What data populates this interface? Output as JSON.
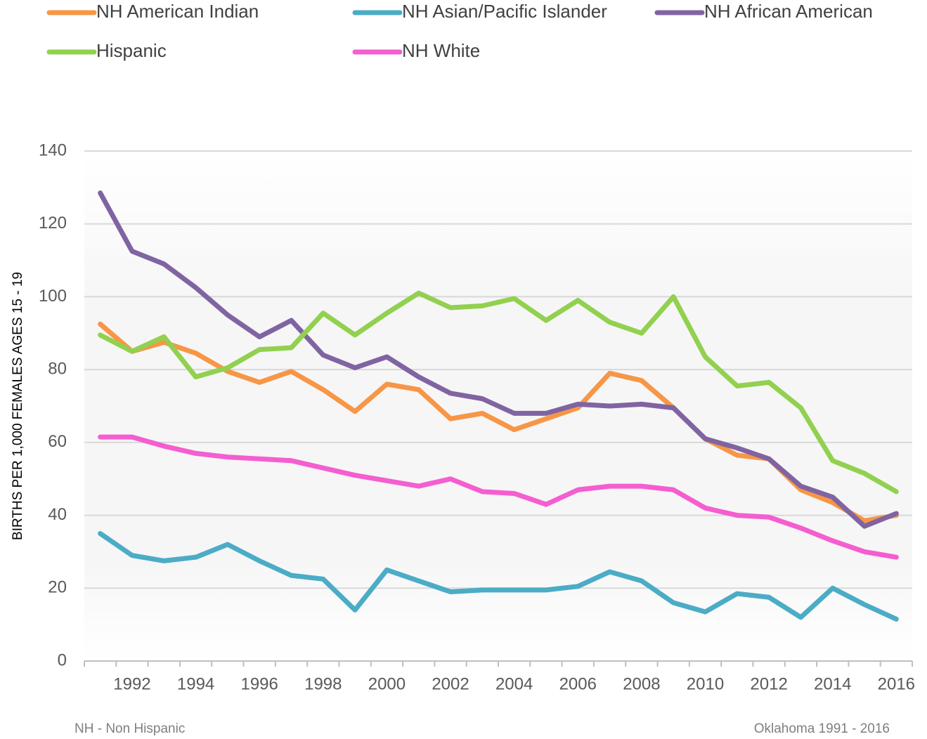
{
  "chart_data": {
    "type": "line",
    "y_label": "BIRTHS PER 1,000 FEMALES AGES 15 - 19",
    "footnote_left": "NH - Non Hispanic",
    "footnote_right": "Oklahoma 1991 - 2016",
    "categories": [
      null,
      "1992",
      null,
      "1994",
      null,
      "1996",
      null,
      "1998",
      null,
      "2000",
      null,
      "2002",
      null,
      "2004",
      null,
      "2006",
      null,
      "2008",
      null,
      "2010",
      null,
      "2012",
      null,
      "2014",
      null,
      "2016"
    ],
    "ylim": [
      0,
      140
    ],
    "yticks": [
      0,
      20,
      40,
      60,
      80,
      100,
      120,
      140
    ],
    "grid": true,
    "legend": "top",
    "series": [
      {
        "name": "NH American Indian",
        "color": "#f79646",
        "values": [
          92.5,
          85,
          87.5,
          84.5,
          79.5,
          76.5,
          79.5,
          74.5,
          68.5,
          76,
          74.5,
          66.5,
          68,
          63.5,
          66.5,
          69.5,
          79,
          77,
          69.5,
          61,
          56.5,
          55.5,
          47,
          43.5,
          38.5,
          40
        ]
      },
      {
        "name": "NH Asian/Pacific Islander",
        "color": "#4bacc6",
        "values": [
          35,
          29,
          27.5,
          28.5,
          32,
          27.5,
          23.5,
          22.5,
          14,
          25,
          22,
          19,
          19.5,
          19.5,
          19.5,
          20.5,
          24.5,
          22,
          16,
          13.5,
          18.5,
          17.5,
          12,
          20,
          15.5,
          11.5
        ]
      },
      {
        "name": "NH African American",
        "color": "#8064a2",
        "values": [
          128.5,
          112.5,
          109,
          102.5,
          95,
          89,
          93.5,
          84,
          80.5,
          83.5,
          78,
          73.5,
          72,
          68,
          68,
          70.5,
          70,
          70.5,
          69.5,
          61,
          58.5,
          55.5,
          48,
          45,
          37,
          40.5
        ]
      },
      {
        "name": "Hispanic",
        "color": "#92d050",
        "values": [
          89.5,
          85,
          89,
          78,
          80.5,
          85.5,
          86,
          95.5,
          89.5,
          95.5,
          101,
          97,
          97.5,
          99.5,
          93.5,
          99,
          93,
          90,
          100,
          83.5,
          75.5,
          76.5,
          69.5,
          55,
          51.5,
          46.5
        ]
      },
      {
        "name": "NH White",
        "color": "#f45ed0",
        "values": [
          61.5,
          61.5,
          59,
          57,
          56,
          55.5,
          55,
          53,
          51,
          49.5,
          48,
          50,
          46.5,
          46,
          43,
          47,
          48,
          48,
          47,
          42,
          40,
          39.5,
          36.5,
          33,
          30,
          28.5
        ]
      }
    ]
  }
}
